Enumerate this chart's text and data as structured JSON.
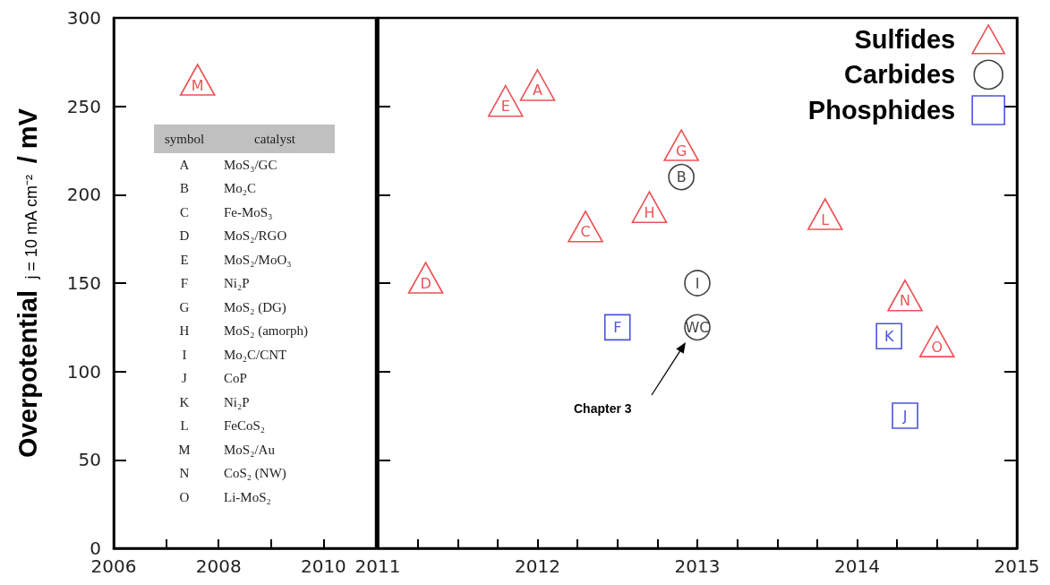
{
  "chart_data": [
    {
      "type": "scatter",
      "ylabel": "Overpotential $_{j = 10 mA cm⁻²}$ / mV",
      "xlim": [
        2006,
        2011
      ],
      "xticks": [
        2006,
        {
          "value": 2007,
          "label": null
        },
        2008,
        {
          "value": 2009,
          "label": null
        },
        2010
      ],
      "ylim": [
        0,
        300
      ],
      "yticks": [
        0,
        50,
        100,
        150,
        200,
        250,
        300
      ],
      "grid": false,
      "legend": false,
      "series": [
        {
          "color": "#e8262a",
          "marker": "triangle",
          "x": [
            2007.6
          ],
          "values": [
            265
          ],
          "value_labels": [
            "M"
          ]
        }
      ],
      "annotations": [
        "symbol",
        "catalyst",
        "A",
        "MoS₃/GC",
        "B",
        "Mo₂C",
        "C",
        "Fe-MoS₃",
        "D",
        "MoS₂/RGO",
        "E",
        "MoS₂/MoO₃",
        "F",
        "Ni₂P",
        "G",
        "MoS₂ (DG)",
        "H",
        "MoS₂ (amorph)",
        "I",
        "Mo₂C/CNT",
        "J",
        "CoP",
        "K",
        "Ni₂P",
        "L",
        "FeCoS₂",
        "M",
        "MoS₂/Au",
        "N",
        "CoS₂ (NW)",
        "O",
        "Li-MoS₂"
      ]
    },
    {
      "type": "scatter",
      "xlim": [
        2011,
        2015
      ],
      "xticks": [
        2011,
        {
          "value": 2011.25,
          "label": null
        },
        {
          "value": 2011.5,
          "label": null
        },
        {
          "value": 2011.75,
          "label": null
        },
        2012,
        {
          "value": 2012.25,
          "label": null
        },
        {
          "value": 2012.5,
          "label": null
        },
        {
          "value": 2012.75,
          "label": null
        },
        2013,
        {
          "value": 2013.25,
          "label": null
        },
        {
          "value": 2013.5,
          "label": null
        },
        {
          "value": 2013.75,
          "label": null
        },
        2014,
        {
          "value": 2014.25,
          "label": null
        },
        {
          "value": 2014.5,
          "label": null
        },
        {
          "value": 2014.75,
          "label": null
        },
        2015
      ],
      "ylim": [
        0,
        300
      ],
      "yticks": [
        0,
        50,
        100,
        150,
        200,
        250,
        300
      ],
      "tick_labels": "x",
      "grid": false,
      "legend": "top right",
      "series": [
        {
          "name": "Sulfides",
          "color": "#e8262a",
          "marker": "triangle",
          "x": [
            2012.0,
            2011.8,
            2011.3,
            2012.3,
            2012.7,
            2012.9,
            2013.8,
            2014.3,
            2014.5
          ],
          "values": [
            262,
            253,
            153,
            182,
            193,
            228,
            189,
            143,
            117
          ],
          "value_labels": [
            "A",
            "E",
            "D",
            "C",
            "H",
            "G",
            "L",
            "N",
            "O"
          ]
        },
        {
          "name": "Carbides",
          "color": "#111111",
          "marker": "circle",
          "x": [
            2012.9,
            2013.0,
            2013.0
          ],
          "values": [
            210,
            150,
            125
          ],
          "value_labels": [
            "B",
            "I",
            "WC"
          ]
        },
        {
          "name": "Phosphides",
          "color": "#1f2bd0",
          "marker": "square",
          "x": [
            2012.5,
            2014.2,
            2014.3
          ],
          "values": [
            125,
            120,
            75
          ],
          "value_labels": [
            "F",
            "K",
            "J"
          ]
        }
      ],
      "annotations": [
        "Chapter 3"
      ]
    }
  ]
}
